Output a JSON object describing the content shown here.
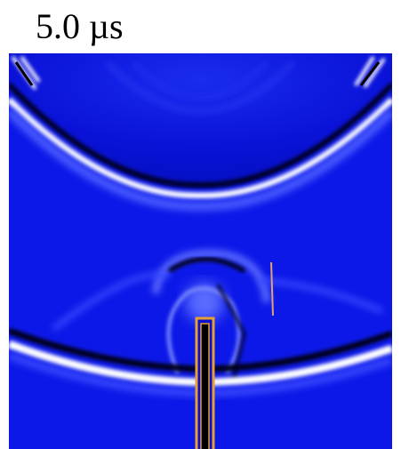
{
  "label": "5.0 µs"
}
